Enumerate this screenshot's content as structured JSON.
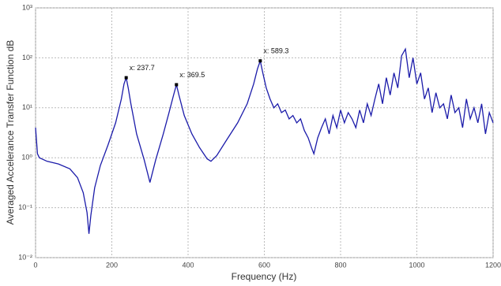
{
  "chart_data": {
    "type": "line",
    "x_label": "Frequency (Hz)",
    "y_label": "Averaged Accelerance Transfer Function dB",
    "x": [
      0,
      5,
      10,
      30,
      60,
      90,
      110,
      125,
      135,
      140,
      145,
      155,
      170,
      190,
      210,
      225,
      232,
      237.7,
      243,
      250,
      265,
      285,
      300,
      315,
      335,
      350,
      362,
      369.5,
      376,
      390,
      410,
      430,
      450,
      460,
      475,
      500,
      530,
      555,
      572,
      582,
      589.3,
      596,
      605,
      615,
      625,
      635,
      645,
      655,
      665,
      675,
      685,
      695,
      705,
      715,
      725,
      730,
      740,
      750,
      760,
      770,
      780,
      790,
      800,
      810,
      820,
      830,
      840,
      850,
      860,
      870,
      880,
      890,
      900,
      910,
      920,
      930,
      940,
      950,
      960,
      970,
      980,
      990,
      1000,
      1010,
      1020,
      1030,
      1040,
      1050,
      1060,
      1070,
      1080,
      1090,
      1100,
      1110,
      1120,
      1130,
      1140,
      1150,
      1160,
      1170,
      1180,
      1190,
      1200
    ],
    "series": [
      {
        "color": "#1c1caa",
        "values": [
          4,
          1.2,
          1.0,
          0.85,
          0.75,
          0.6,
          0.4,
          0.2,
          0.08,
          0.03,
          0.07,
          0.25,
          0.7,
          1.8,
          5,
          15,
          30,
          40,
          25,
          12,
          3,
          0.9,
          0.32,
          0.9,
          3,
          8,
          18,
          29,
          18,
          7,
          3,
          1.6,
          0.95,
          0.85,
          1.1,
          2.2,
          5,
          12,
          30,
          60,
          87,
          50,
          25,
          15,
          10,
          12,
          8,
          9,
          6,
          7,
          5,
          6,
          3.5,
          2.5,
          1.5,
          1.2,
          2.5,
          4,
          6,
          3,
          7,
          4,
          9,
          5,
          8,
          6,
          4,
          9,
          5,
          12,
          7,
          15,
          30,
          12,
          40,
          18,
          50,
          25,
          110,
          150,
          40,
          100,
          30,
          50,
          15,
          25,
          8,
          20,
          10,
          12,
          6,
          18,
          8,
          10,
          4,
          15,
          6,
          10,
          5,
          12,
          3,
          8,
          5
        ]
      }
    ],
    "annotations": [
      {
        "text": "x: 237.7",
        "x": 237.7,
        "y": 40
      },
      {
        "text": "x: 369.5",
        "x": 369.5,
        "y": 29
      },
      {
        "text": "x: 589.3",
        "x": 589.3,
        "y": 87
      }
    ],
    "xlim": [
      0,
      1200
    ],
    "xticks": [
      0,
      200,
      400,
      600,
      800,
      1000,
      1200
    ],
    "ylim": [
      0.01,
      1000
    ],
    "log_y": true,
    "yticks": [
      {
        "value": 0.01,
        "label": "10⁻²"
      },
      {
        "value": 0.1,
        "label": "10⁻¹"
      },
      {
        "value": 1,
        "label": "10⁰"
      },
      {
        "value": 10,
        "label": "10¹"
      },
      {
        "value": 100,
        "label": "10²"
      },
      {
        "value": 1000,
        "label": "10³"
      }
    ],
    "grid": true
  }
}
